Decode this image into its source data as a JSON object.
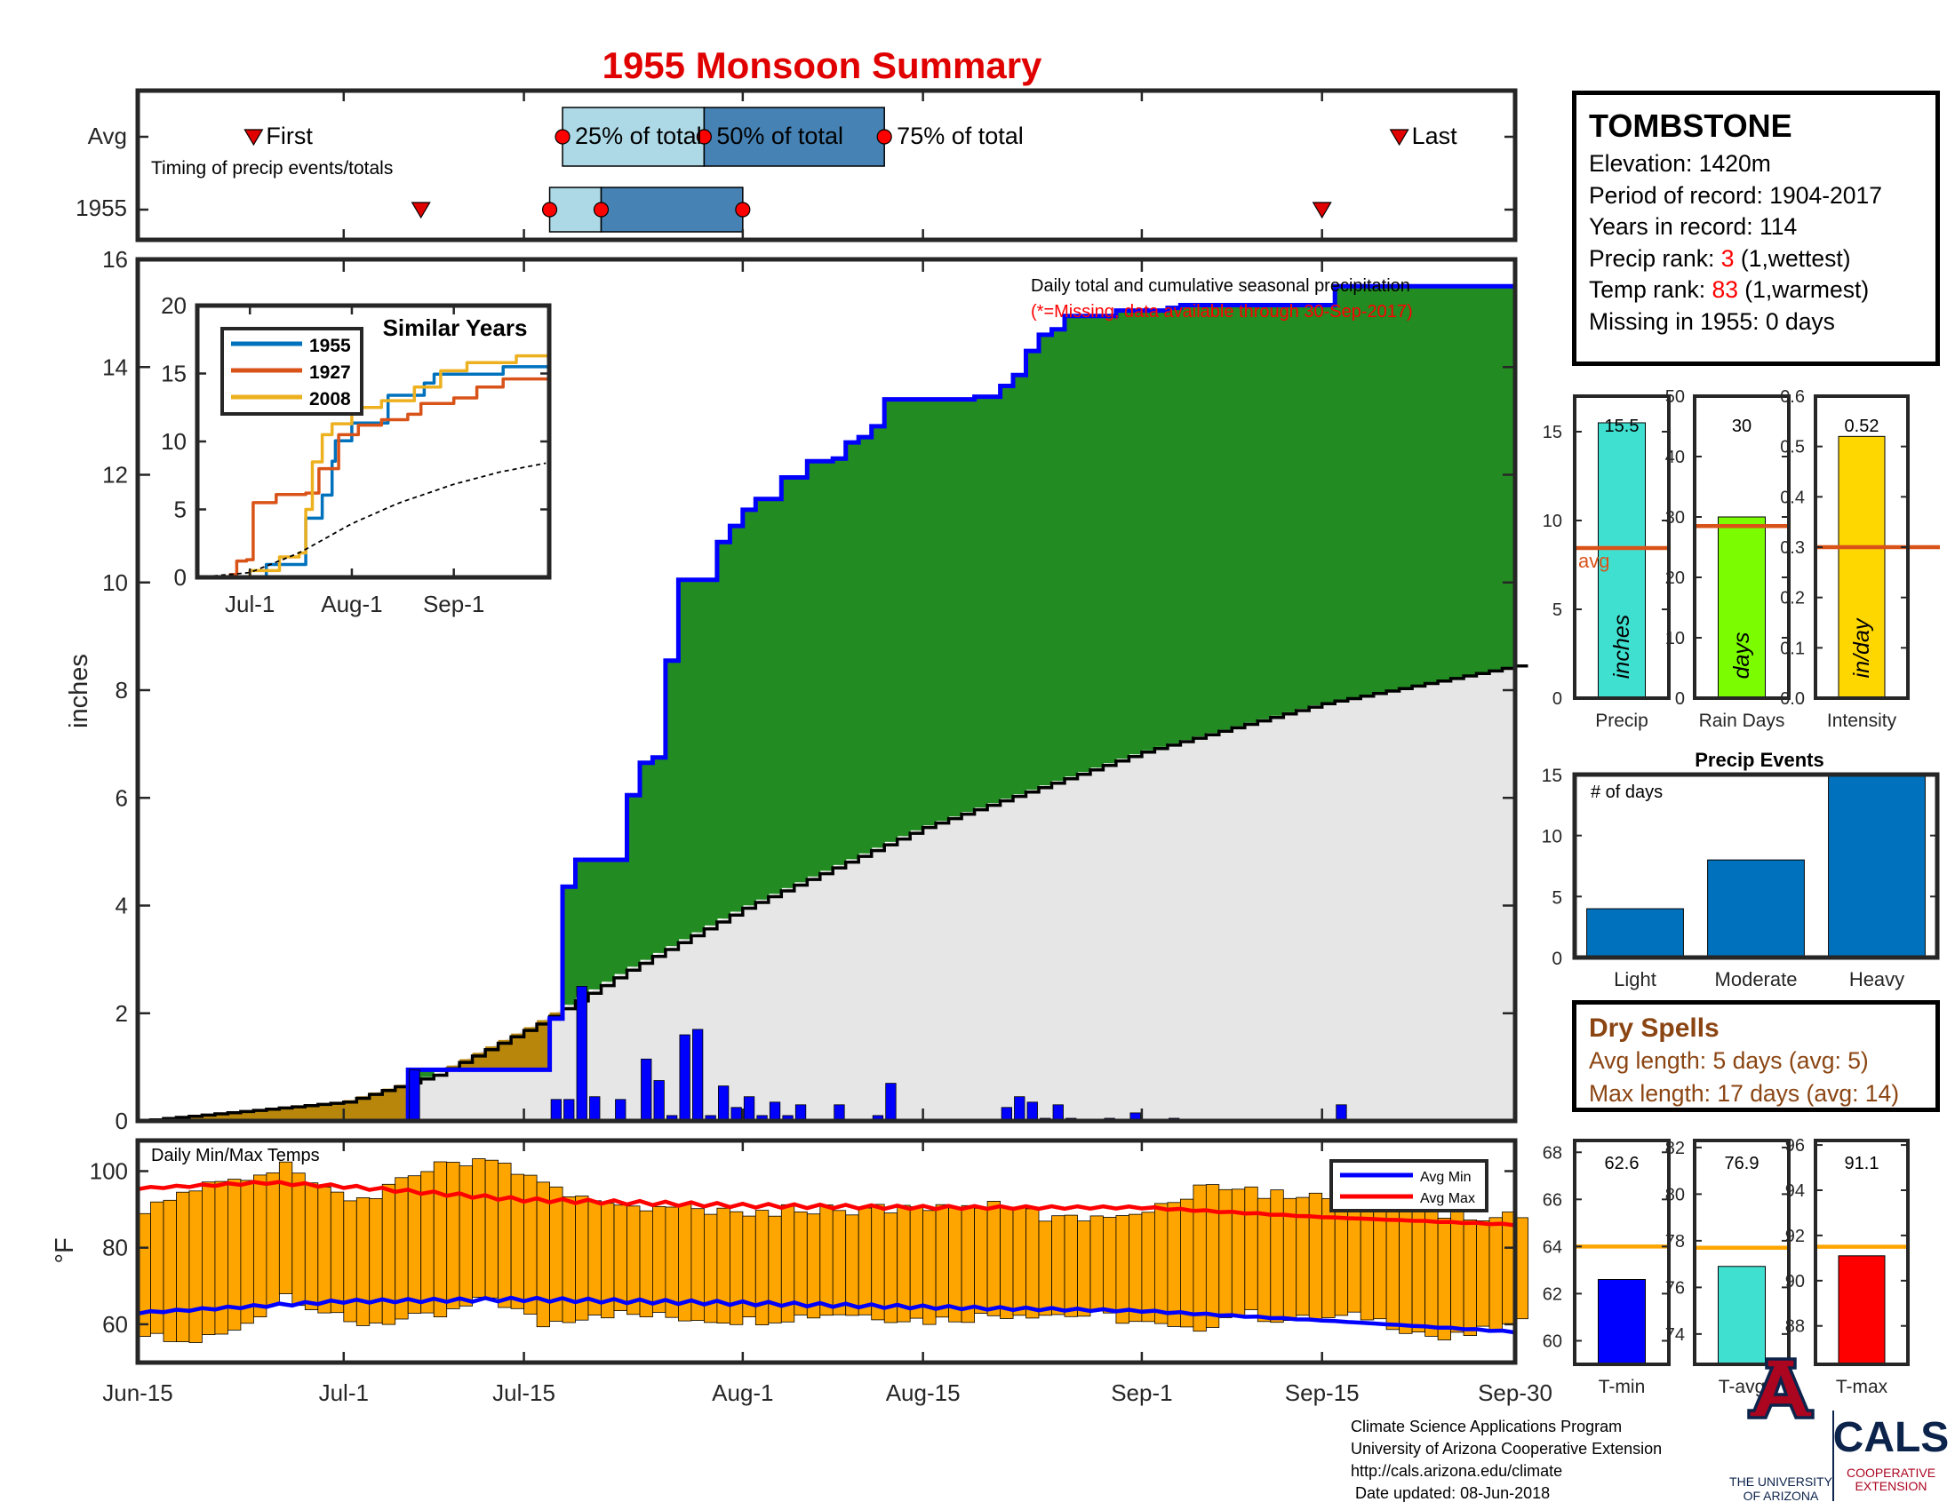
{
  "figure": {
    "title": "1955 Monsoon Summary",
    "x_tick_labels": [
      "Jun-15",
      "Jul-1",
      "Jul-15",
      "Aug-1",
      "Aug-15",
      "Sep-1",
      "Sep-15",
      "Sep-30"
    ]
  },
  "timing": {
    "row_labels": [
      "Avg",
      "1955"
    ],
    "caption": "Timing of precip events/totals",
    "avg_labels": {
      "first": "First",
      "p25": "25% of total",
      "p50": "50% of total",
      "p75": "75% of total",
      "last": "Last"
    },
    "avg": {
      "first": "Jun-24",
      "p25": "Jul-18",
      "p50": "Jul-29",
      "p75": "Aug-12",
      "last": "Sep-21"
    },
    "y1955": {
      "first": "Jul-07",
      "p25": "Jul-17",
      "p50": "Jul-21",
      "p75": "Aug-01",
      "last": "Sep-15"
    }
  },
  "info": {
    "station": "TOMBSTONE",
    "elevation": "Elevation: 1420m",
    "period": "Period of record: 1904-2017",
    "years": "Years in record: 114",
    "precip_rank_label": "Precip rank: ",
    "precip_rank_value": "3",
    "precip_rank_suffix": " (1,wettest)",
    "temp_rank_label": "Temp rank: ",
    "temp_rank_value": "83",
    "temp_rank_suffix": " (1,warmest)",
    "missing": "Missing in 1955: 0 days"
  },
  "dry_spells": {
    "title": "Dry Spells",
    "avg_length": "Avg length: 5 days (avg: 5)",
    "max_length": "Max length: 17 days (avg: 14)"
  },
  "footer": {
    "line1": "Climate Science Applications Program",
    "line2": "University of Arizona Cooperative Extension",
    "line3": "http://cals.arizona.edu/climate",
    "line4": " Date updated: 08-Jun-2018",
    "ua_line1": "THE UNIVERSITY",
    "ua_line2": "OF ARIZONA",
    "cals": "CALS",
    "cals_line1": "COOPERATIVE",
    "cals_line2": "EXTENSION"
  },
  "colors": {
    "above_avg": "#228b22",
    "below_avg": "#b8860b",
    "clim": "#e6e6e6",
    "cumulative_line": "#0000ff",
    "daily_bars": "#0000ff",
    "temp_bars": "#ffa500",
    "avg_min": "#0000ff",
    "avg_max": "#ff0000",
    "title": "#e00000",
    "rank": "#ff0000",
    "dry_spells": "#8b4513",
    "avg_line": "#d95319",
    "ua_navy": "#0c234b",
    "ua_red": "#ab0520"
  },
  "chart_data": [
    {
      "id": "precip",
      "type": "area",
      "text": "Daily total and cumulative seasonal precipitation",
      "missing_note": "(*=Missing, data available through 30-Sep-2017)",
      "ylabel": "inches",
      "ylim": [
        0,
        16
      ],
      "yticks": [
        0,
        2,
        4,
        6,
        8,
        10,
        12,
        14,
        16
      ],
      "x_range": [
        "Jun-15",
        "Sep-30"
      ],
      "cumulative_1955": [
        [
          "Jun-15",
          0
        ],
        [
          "Jul-05",
          0
        ],
        [
          "Jul-06",
          0.95
        ],
        [
          "Jul-16",
          0.95
        ],
        [
          "Jul-17",
          1.9
        ],
        [
          "Jul-18",
          4.35
        ],
        [
          "Jul-19",
          4.85
        ],
        [
          "Jul-22",
          4.85
        ],
        [
          "Jul-23",
          6.05
        ],
        [
          "Jul-24",
          6.65
        ],
        [
          "Jul-25",
          6.75
        ],
        [
          "Jul-26",
          8.55
        ],
        [
          "Jul-27",
          10.05
        ],
        [
          "Jul-30",
          10.75
        ],
        [
          "Jul-31",
          11.05
        ],
        [
          "Aug-01",
          11.35
        ],
        [
          "Aug-02",
          11.55
        ],
        [
          "Aug-04",
          11.95
        ],
        [
          "Aug-06",
          12.25
        ],
        [
          "Aug-08",
          12.3
        ],
        [
          "Aug-09",
          12.6
        ],
        [
          "Aug-10",
          12.7
        ],
        [
          "Aug-11",
          12.9
        ],
        [
          "Aug-12",
          13.4
        ],
        [
          "Aug-19",
          13.45
        ],
        [
          "Aug-21",
          13.65
        ],
        [
          "Aug-22",
          13.85
        ],
        [
          "Aug-23",
          14.3
        ],
        [
          "Aug-24",
          14.6
        ],
        [
          "Aug-25",
          14.7
        ],
        [
          "Aug-26",
          14.95
        ],
        [
          "Aug-30",
          15.05
        ],
        [
          "Sep-03",
          15.1
        ],
        [
          "Sep-04",
          15.15
        ],
        [
          "Sep-15",
          15.15
        ],
        [
          "Sep-16",
          15.5
        ],
        [
          "Sep-30",
          15.5
        ]
      ],
      "daily_1955": [
        [
          "Jul-06",
          0.95
        ],
        [
          "Jul-17",
          0.4
        ],
        [
          "Jul-18",
          0.4
        ],
        [
          "Jul-19",
          2.5
        ],
        [
          "Jul-20",
          0.45
        ],
        [
          "Jul-22",
          0.4
        ],
        [
          "Jul-24",
          1.15
        ],
        [
          "Jul-25",
          0.75
        ],
        [
          "Jul-26",
          0.1
        ],
        [
          "Jul-27",
          1.6
        ],
        [
          "Jul-28",
          1.7
        ],
        [
          "Jul-29",
          0.1
        ],
        [
          "Jul-30",
          0.65
        ],
        [
          "Jul-31",
          0.25
        ],
        [
          "Aug-01",
          0.45
        ],
        [
          "Aug-02",
          0.1
        ],
        [
          "Aug-03",
          0.35
        ],
        [
          "Aug-04",
          0.1
        ],
        [
          "Aug-05",
          0.3
        ],
        [
          "Aug-08",
          0.3
        ],
        [
          "Aug-11",
          0.1
        ],
        [
          "Aug-12",
          0.7
        ],
        [
          "Aug-21",
          0.25
        ],
        [
          "Aug-22",
          0.45
        ],
        [
          "Aug-23",
          0.35
        ],
        [
          "Aug-24",
          0.05
        ],
        [
          "Aug-25",
          0.3
        ],
        [
          "Aug-26",
          0.05
        ],
        [
          "Aug-29",
          0.05
        ],
        [
          "Aug-31",
          0.15
        ],
        [
          "Sep-03",
          0.05
        ],
        [
          "Sep-16",
          0.3
        ]
      ],
      "clim_cumulative": [
        [
          "Jun-15",
          0
        ],
        [
          "Jul-01",
          0.35
        ],
        [
          "Jul-08",
          0.85
        ],
        [
          "Jul-16",
          1.8
        ],
        [
          "Jul-23",
          2.8
        ],
        [
          "Aug-01",
          3.95
        ],
        [
          "Aug-15",
          5.45
        ],
        [
          "Sep-01",
          6.85
        ],
        [
          "Sep-15",
          7.75
        ],
        [
          "Sep-30",
          8.45
        ]
      ]
    },
    {
      "id": "similar",
      "type": "line",
      "title": "Similar Years",
      "ylim": [
        0,
        20
      ],
      "yticks": [
        0,
        5,
        10,
        15,
        20
      ],
      "xticks": [
        "Jul-1",
        "Aug-1",
        "Sep-1"
      ],
      "series": [
        {
          "name": "1955",
          "color": "#0072bd",
          "points": [
            [
              "Jun-15",
              0
            ],
            [
              "Jul-05",
              0
            ],
            [
              "Jul-06",
              0.95
            ],
            [
              "Jul-16",
              0.95
            ],
            [
              "Jul-18",
              4.35
            ],
            [
              "Jul-23",
              6.05
            ],
            [
              "Jul-26",
              8.55
            ],
            [
              "Jul-27",
              10.05
            ],
            [
              "Aug-01",
              11.35
            ],
            [
              "Aug-12",
              13.4
            ],
            [
              "Aug-23",
              14.3
            ],
            [
              "Aug-26",
              14.95
            ],
            [
              "Sep-16",
              15.5
            ],
            [
              "Sep-30",
              15.5
            ]
          ]
        },
        {
          "name": "1927",
          "color": "#d95319",
          "points": [
            [
              "Jun-15",
              0
            ],
            [
              "Jun-25",
              0.2
            ],
            [
              "Jun-27",
              1.2
            ],
            [
              "Jun-30",
              1.3
            ],
            [
              "Jul-02",
              5.5
            ],
            [
              "Jul-09",
              6.1
            ],
            [
              "Jul-18",
              6.2
            ],
            [
              "Jul-22",
              8.0
            ],
            [
              "Jul-28",
              10.5
            ],
            [
              "Aug-03",
              11.2
            ],
            [
              "Aug-10",
              11.6
            ],
            [
              "Aug-18",
              12.0
            ],
            [
              "Aug-22",
              12.8
            ],
            [
              "Sep-01",
              13.2
            ],
            [
              "Sep-08",
              14.0
            ],
            [
              "Sep-16",
              14.6
            ],
            [
              "Sep-30",
              15.0
            ]
          ]
        },
        {
          "name": "2008",
          "color": "#edb120",
          "points": [
            [
              "Jun-15",
              0
            ],
            [
              "Jul-01",
              0.5
            ],
            [
              "Jul-10",
              1.5
            ],
            [
              "Jul-16",
              1.8
            ],
            [
              "Jul-18",
              5.0
            ],
            [
              "Jul-20",
              8.5
            ],
            [
              "Jul-23",
              10.5
            ],
            [
              "Jul-26",
              11.3
            ],
            [
              "Aug-01",
              12.5
            ],
            [
              "Aug-10",
              13.0
            ],
            [
              "Aug-20",
              14.0
            ],
            [
              "Aug-28",
              15.2
            ],
            [
              "Sep-05",
              15.8
            ],
            [
              "Sep-20",
              16.3
            ],
            [
              "Sep-30",
              16.6
            ]
          ]
        },
        {
          "points": [
            [
              "Jun-15",
              0
            ],
            [
              "Jul-01",
              0.35
            ],
            [
              "Jul-16",
              1.8
            ],
            [
              "Aug-01",
              3.95
            ],
            [
              "Aug-15",
              5.45
            ],
            [
              "Sep-01",
              6.85
            ],
            [
              "Sep-15",
              7.75
            ],
            [
              "Sep-30",
              8.45
            ]
          ]
        }
      ]
    },
    {
      "id": "temps",
      "type": "bar",
      "label": "Daily Min/Max Temps",
      "ylabel": "°F",
      "ylim": [
        50,
        108
      ],
      "yticks": [
        60,
        80,
        100
      ],
      "legend_position": "top-right",
      "series": [
        {
          "name": "Avg Min"
        },
        {
          "name": "Avg Max"
        }
      ],
      "daily_min_keypoints": [
        [
          "Jun-15",
          57
        ],
        [
          "Jun-18",
          55
        ],
        [
          "Jun-22",
          58
        ],
        [
          "Jun-26",
          68
        ],
        [
          "Jul-01",
          60
        ],
        [
          "Jul-08",
          62
        ],
        [
          "Jul-12",
          67
        ],
        [
          "Jul-16",
          60
        ],
        [
          "Jul-20",
          63
        ],
        [
          "Jul-25",
          62
        ],
        [
          "Aug-01",
          61
        ],
        [
          "Aug-08",
          63
        ],
        [
          "Aug-15",
          61
        ],
        [
          "Aug-22",
          63
        ],
        [
          "Aug-29",
          62
        ],
        [
          "Sep-04",
          58
        ],
        [
          "Sep-08",
          63
        ],
        [
          "Sep-12",
          61
        ],
        [
          "Sep-18",
          62
        ],
        [
          "Sep-24",
          56
        ],
        [
          "Sep-30",
          60
        ]
      ],
      "daily_max_keypoints": [
        [
          "Jun-15",
          90
        ],
        [
          "Jun-20",
          97
        ],
        [
          "Jun-26",
          101
        ],
        [
          "Jul-02",
          92
        ],
        [
          "Jul-07",
          101
        ],
        [
          "Jul-12",
          103
        ],
        [
          "Jul-18",
          93
        ],
        [
          "Jul-24",
          91
        ],
        [
          "Jul-30",
          89
        ],
        [
          "Aug-05",
          90
        ],
        [
          "Aug-12",
          90
        ],
        [
          "Aug-20",
          91
        ],
        [
          "Aug-26",
          87
        ],
        [
          "Sep-02",
          91
        ],
        [
          "Sep-06",
          97
        ],
        [
          "Sep-12",
          93
        ],
        [
          "Sep-18",
          95
        ],
        [
          "Sep-24",
          89
        ],
        [
          "Sep-30",
          88
        ]
      ],
      "avg_min_curve": [
        [
          "Jun-15",
          63
        ],
        [
          "Jul-01",
          66
        ],
        [
          "Jul-15",
          66.5
        ],
        [
          "Aug-01",
          65.5
        ],
        [
          "Aug-15",
          64.5
        ],
        [
          "Sep-01",
          63.5
        ],
        [
          "Sep-15",
          61
        ],
        [
          "Sep-30",
          58
        ]
      ],
      "avg_max_curve": [
        [
          "Jun-15",
          95.5
        ],
        [
          "Jun-25",
          97
        ],
        [
          "Jul-01",
          96
        ],
        [
          "Jul-15",
          92.5
        ],
        [
          "Aug-01",
          91
        ],
        [
          "Aug-15",
          90.5
        ],
        [
          "Sep-01",
          90.5
        ],
        [
          "Sep-15",
          88
        ],
        [
          "Sep-30",
          86
        ]
      ]
    },
    {
      "id": "season_precip",
      "type": "bar",
      "xlabel": "Precip",
      "value": 15.5,
      "value_label": "15.5",
      "avg": 8.45,
      "avg_label": "avg",
      "inbar": "inches",
      "color": "#40e0d0",
      "ylim": [
        0,
        17
      ],
      "yticks": [
        0,
        5,
        10,
        15
      ]
    },
    {
      "id": "rain_days",
      "type": "bar",
      "xlabel": "Rain Days",
      "value": 30,
      "value_label": "30",
      "avg": 28.5,
      "inbar": "days",
      "color": "#7cfc00",
      "ylim": [
        0,
        50
      ],
      "yticks": [
        0,
        10,
        20,
        30,
        40,
        50
      ]
    },
    {
      "id": "intensity",
      "type": "bar",
      "xlabel": "Intensity",
      "value": 0.52,
      "value_label": "0.52",
      "avg": 0.3,
      "inbar": "in/day",
      "color": "#ffd700",
      "ylim": [
        0,
        0.6
      ],
      "yticks": [
        0,
        0.1,
        0.2,
        0.3,
        0.4,
        0.5,
        0.6
      ]
    },
    {
      "id": "events",
      "type": "bar",
      "title": "Precip Events",
      "label": "# of days",
      "categories": [
        "Light",
        "Moderate",
        "Heavy"
      ],
      "values": [
        4,
        8,
        15
      ],
      "color": "#0072bd",
      "ylim": [
        0,
        15
      ],
      "yticks": [
        0,
        5,
        10,
        15
      ]
    },
    {
      "id": "tmin",
      "type": "bar",
      "xlabel": "T-min",
      "value": 62.6,
      "value_label": "62.6",
      "avg": 64,
      "color": "#0000ff",
      "ylim": [
        59,
        68.5
      ],
      "yticks": [
        60,
        62,
        64,
        66,
        68
      ]
    },
    {
      "id": "tavg",
      "type": "bar",
      "xlabel": "T-avg",
      "value": 76.9,
      "value_label": "76.9",
      "avg": 77.7,
      "color": "#40e0d0",
      "ylim": [
        72.7,
        82.3
      ],
      "yticks": [
        74,
        76,
        78,
        80,
        82
      ]
    },
    {
      "id": "tmax",
      "type": "bar",
      "xlabel": "T-max",
      "value": 91.1,
      "value_label": "91.1",
      "avg": 91.5,
      "color": "#ff0000",
      "ylim": [
        86.3,
        96.2
      ],
      "yticks": [
        88,
        90,
        92,
        94,
        96
      ]
    }
  ]
}
